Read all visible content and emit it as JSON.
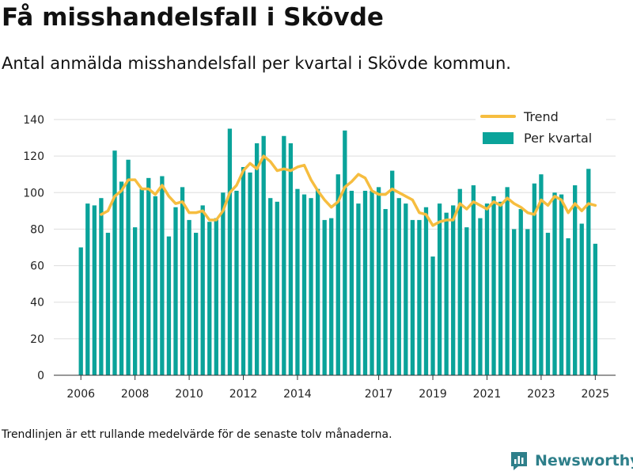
{
  "title": "Få misshandelsfall i Skövde",
  "subtitle": "Antal anmälda misshandelsfall per kvartal i Skövde kommun.",
  "footnote": "Trendlinjen är ett rullande medelvärde för de senaste tolv månaderna.",
  "brand": "Newsworthy",
  "colors": {
    "bar": "#0aa39a",
    "trend": "#f6bd3f",
    "grid": "#dddddd",
    "brand": "#2e7f8a"
  },
  "chart_data": {
    "type": "bar",
    "x_start": 2006.0,
    "x_step": 0.25,
    "xlim": [
      2005.0,
      2025.75
    ],
    "ylim": [
      0,
      140
    ],
    "y_ticks": [
      0,
      20,
      40,
      60,
      80,
      100,
      120,
      140
    ],
    "x_tick_labels": [
      "2006",
      "2008",
      "2010",
      "2012",
      "2014",
      "2017",
      "2019",
      "2021",
      "2023",
      "2025"
    ],
    "x_tick_values": [
      2006,
      2008,
      2010,
      2012,
      2014,
      2017,
      2019,
      2021,
      2023,
      2025
    ],
    "legend_position": "top-right",
    "series": [
      {
        "name": "Per kvartal",
        "type": "bar",
        "values": [
          70,
          94,
          93,
          97,
          78,
          123,
          106,
          118,
          81,
          102,
          108,
          98,
          109,
          76,
          92,
          103,
          85,
          78,
          93,
          84,
          86,
          100,
          135,
          101,
          114,
          111,
          127,
          131,
          97,
          95,
          131,
          127,
          102,
          99,
          97,
          102,
          85,
          86,
          110,
          134,
          101,
          94,
          101,
          101,
          103,
          91,
          112,
          97,
          94,
          85,
          85,
          92,
          65,
          94,
          89,
          93,
          102,
          81,
          104,
          86,
          94,
          98,
          95,
          103,
          80,
          91,
          80,
          105,
          110,
          78,
          100,
          99,
          75,
          104,
          83,
          113,
          72
        ]
      },
      {
        "name": "Trend",
        "type": "line",
        "x": [
          2006.75,
          2007.0,
          2007.25,
          2007.5,
          2007.75,
          2008.0,
          2008.25,
          2008.5,
          2008.75,
          2009.0,
          2009.25,
          2009.5,
          2009.75,
          2010.0,
          2010.25,
          2010.5,
          2010.75,
          2011.0,
          2011.25,
          2011.5,
          2011.75,
          2012.0,
          2012.25,
          2012.5,
          2012.75,
          2013.0,
          2013.25,
          2013.5,
          2013.75,
          2014.0,
          2014.25,
          2014.5,
          2014.75,
          2015.0,
          2015.25,
          2015.5,
          2015.75,
          2016.0,
          2016.25,
          2016.5,
          2016.75,
          2017.0,
          2017.25,
          2017.5,
          2017.75,
          2018.0,
          2018.25,
          2018.5,
          2018.75,
          2019.0,
          2019.25,
          2019.5,
          2019.75,
          2020.0,
          2020.25,
          2020.5,
          2020.75,
          2021.0,
          2021.25,
          2021.5,
          2021.75,
          2022.0,
          2022.25,
          2022.5,
          2022.75,
          2023.0,
          2023.25,
          2023.5,
          2023.75,
          2024.0,
          2024.25,
          2024.5,
          2024.75,
          2025.0
        ],
        "values": [
          88,
          90,
          98,
          101,
          107,
          107,
          102,
          102,
          99,
          104,
          98,
          94,
          95,
          89,
          89,
          90,
          85,
          85,
          90,
          100,
          104,
          112,
          116,
          113,
          120,
          117,
          112,
          113,
          112,
          114,
          115,
          107,
          101,
          96,
          92,
          95,
          103,
          106,
          110,
          108,
          101,
          99,
          99,
          102,
          100,
          98,
          96,
          89,
          88,
          82,
          84,
          85,
          85,
          94,
          91,
          95,
          93,
          91,
          95,
          93,
          97,
          94,
          92,
          89,
          88,
          96,
          93,
          98,
          96,
          89,
          94,
          90,
          94,
          93
        ]
      }
    ]
  }
}
